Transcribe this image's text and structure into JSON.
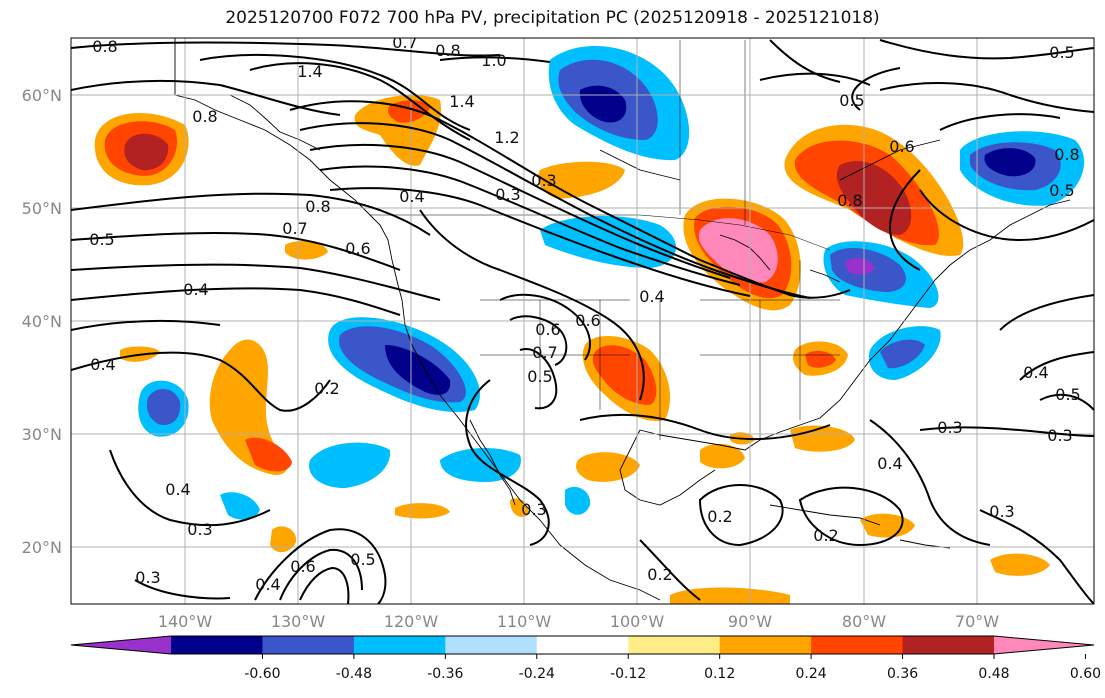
{
  "title": "2025120700 F072 700 hPa PV, precipitation PC (2025120918 - 2025121018)",
  "map": {
    "lon_ticks": [
      "140°W",
      "130°W",
      "120°W",
      "110°W",
      "100°W",
      "90°W",
      "80°W",
      "70°W"
    ],
    "lat_ticks": [
      "60°N",
      "50°N",
      "40°N",
      "30°N",
      "20°N"
    ],
    "tick_color": "#888888",
    "grid": true
  },
  "contour_labels": [
    "0.8",
    "0.7",
    "0.8",
    "1.0",
    "1.4",
    "1.4",
    "0.8",
    "0.4",
    "0.5",
    "0.6",
    "0.6",
    "0.8",
    "0.5",
    "0.8",
    "0.5",
    "0.4",
    "0.7",
    "0.8",
    "0.6",
    "0.5",
    "0.4",
    "0.3",
    "0.4",
    "0.6",
    "0.7",
    "0.5",
    "0.2",
    "0.4",
    "0.3",
    "0.4",
    "0.3",
    "0.6",
    "0.5",
    "0.4",
    "0.3",
    "0.3",
    "0.4",
    "0.5",
    "0.3",
    "0.2",
    "0.2",
    "0.2",
    "0.3",
    "1.2",
    "0.3"
  ],
  "colorbar": {
    "labels": [
      "-0.60",
      "-0.48",
      "-0.36",
      "-0.24",
      "-0.12",
      "0.12",
      "0.24",
      "0.36",
      "0.48",
      "0.60"
    ],
    "colors": [
      "#9932cc",
      "#00008b",
      "#3a56c8",
      "#00bfff",
      "#b0e0ff",
      "#ffffff",
      "#ffee88",
      "#ffa500",
      "#ff4500",
      "#b22222",
      "#ff88bb"
    ]
  }
}
